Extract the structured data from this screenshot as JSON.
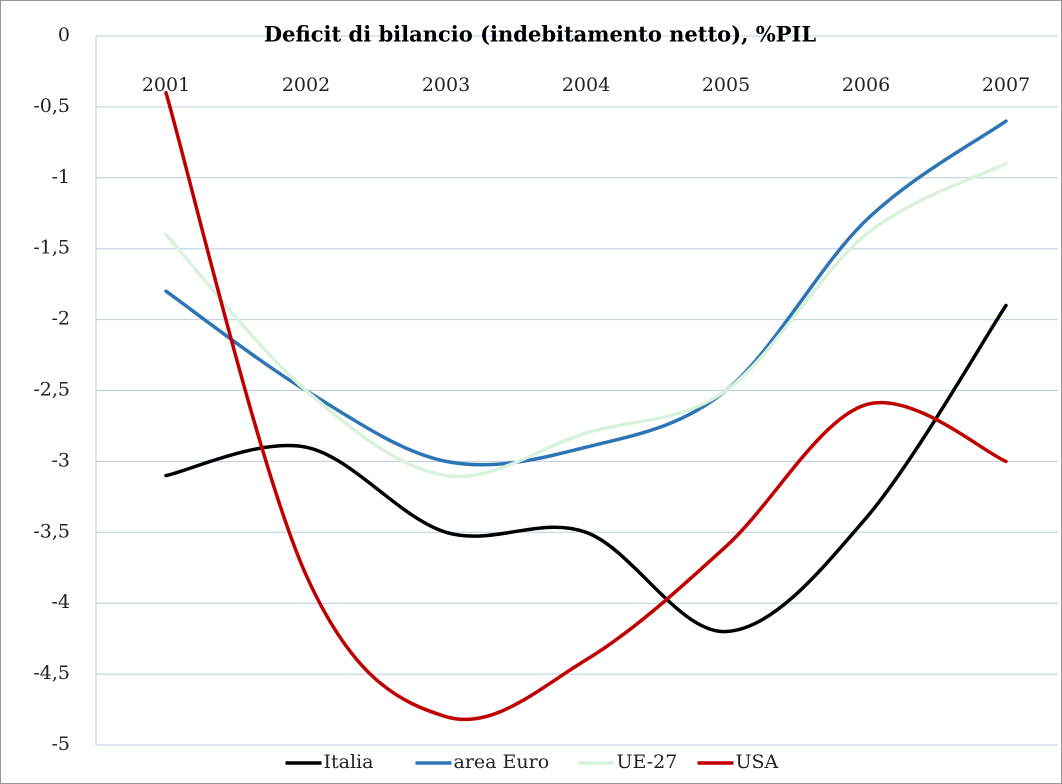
{
  "chart_data": {
    "type": "line",
    "title": "Deficit di bilancio (indebitamento netto), %PIL",
    "categories": [
      "2001",
      "2002",
      "2003",
      "2004",
      "2005",
      "2006",
      "2007"
    ],
    "series": [
      {
        "name": "Italia",
        "color": "#000000",
        "values": [
          -3.1,
          -2.9,
          -3.5,
          -3.5,
          -4.2,
          -3.4,
          -1.9
        ]
      },
      {
        "name": "area Euro",
        "color": "#2e75b6",
        "values": [
          -1.8,
          -2.5,
          -3.0,
          -2.9,
          -2.5,
          -1.3,
          -0.6
        ]
      },
      {
        "name": "UE-27",
        "color": "#d9f2dc",
        "values": [
          -1.4,
          -2.5,
          -3.1,
          -2.8,
          -2.5,
          -1.4,
          -0.9
        ]
      },
      {
        "name": "USA",
        "color": "#c00000",
        "values": [
          -0.4,
          -3.8,
          -4.8,
          -4.4,
          -3.6,
          -2.6,
          -3.0
        ]
      }
    ],
    "ylim": [
      -5,
      0
    ],
    "yticks": [
      0,
      {
        "value": -0.5,
        "label": "-0,5"
      },
      -1,
      {
        "value": -1.5,
        "label": "-1,5"
      },
      -2,
      {
        "value": -2.5,
        "label": "-2,5"
      },
      -3,
      {
        "value": -3.5,
        "label": "-3,5"
      },
      -4,
      {
        "value": -4.5,
        "label": "-4,5"
      },
      -5
    ],
    "grid": true,
    "smooth": true,
    "legend": "bottom"
  }
}
